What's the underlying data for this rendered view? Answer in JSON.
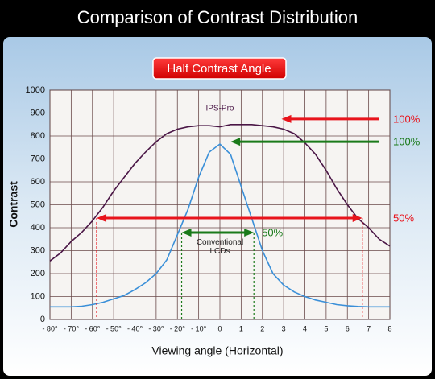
{
  "chart_data": {
    "type": "line",
    "title": "Comparison of Contrast Distribution",
    "subtitle": "Half Contrast Angle",
    "x_label": "Viewing angle (Horizontal)",
    "y_label": "Contrast",
    "x": [
      -80,
      -75,
      -70,
      -65,
      -60,
      -55,
      -50,
      -45,
      -40,
      -35,
      -30,
      -25,
      -20,
      -15,
      -10,
      -5,
      0,
      5,
      10,
      15,
      20,
      25,
      30,
      35,
      40,
      45,
      50,
      55,
      60,
      65,
      70,
      75,
      80
    ],
    "series": [
      {
        "name": "IPS-Pro",
        "color": "#4a1646",
        "values": [
          255,
          290,
          340,
          380,
          430,
          490,
          560,
          620,
          680,
          730,
          775,
          810,
          830,
          840,
          845,
          845,
          840,
          850,
          850,
          850,
          845,
          840,
          830,
          810,
          770,
          720,
          650,
          570,
          500,
          440,
          400,
          350,
          320
        ]
      },
      {
        "name": "Conventional LCDs",
        "color": "#3a8fd8",
        "values": [
          55,
          55,
          55,
          58,
          65,
          75,
          90,
          105,
          130,
          160,
          200,
          260,
          370,
          480,
          620,
          730,
          765,
          720,
          580,
          440,
          300,
          200,
          150,
          120,
          100,
          85,
          75,
          65,
          60,
          57,
          55,
          55,
          55
        ]
      }
    ],
    "xlim": [
      -80,
      80
    ],
    "ylim": [
      0,
      1000
    ],
    "xticks": [
      {
        "value": -80,
        "label": "- 80°"
      },
      {
        "value": -70,
        "label": "- 70°"
      },
      {
        "value": -60,
        "label": "- 60°"
      },
      {
        "value": -50,
        "label": "- 50°"
      },
      {
        "value": -40,
        "label": "- 40°"
      },
      {
        "value": -30,
        "label": "- 30°"
      },
      {
        "value": -20,
        "label": "- 20°"
      },
      {
        "value": -10,
        "label": "- 10°"
      },
      0,
      {
        "value": 10,
        "label": "1"
      },
      {
        "value": 20,
        "label": "2"
      },
      {
        "value": 30,
        "label": "3"
      },
      {
        "value": 40,
        "label": "4"
      },
      {
        "value": 50,
        "label": "5"
      },
      {
        "value": 60,
        "label": "6"
      },
      {
        "value": 70,
        "label": "7"
      },
      {
        "value": 80,
        "label": "8"
      }
    ],
    "yticks": [
      0,
      100,
      200,
      300,
      400,
      500,
      600,
      700,
      800,
      900,
      1000
    ],
    "grid": true,
    "annotations": [
      {
        "text": "100%",
        "color": "#e8141c",
        "y": 874,
        "x": [
          29,
          75
        ],
        "double": false
      },
      {
        "text": "100%",
        "color": "#1a7a1a",
        "y": 775,
        "x": [
          5,
          75
        ],
        "double": false
      },
      {
        "text": "50%",
        "color": "#e8141c",
        "y": 442,
        "x": [
          -58,
          67
        ],
        "double": true
      },
      {
        "text": "50%",
        "color": "#1a7a1a",
        "y": 379,
        "x": [
          -18,
          16
        ],
        "double": true
      }
    ]
  }
}
